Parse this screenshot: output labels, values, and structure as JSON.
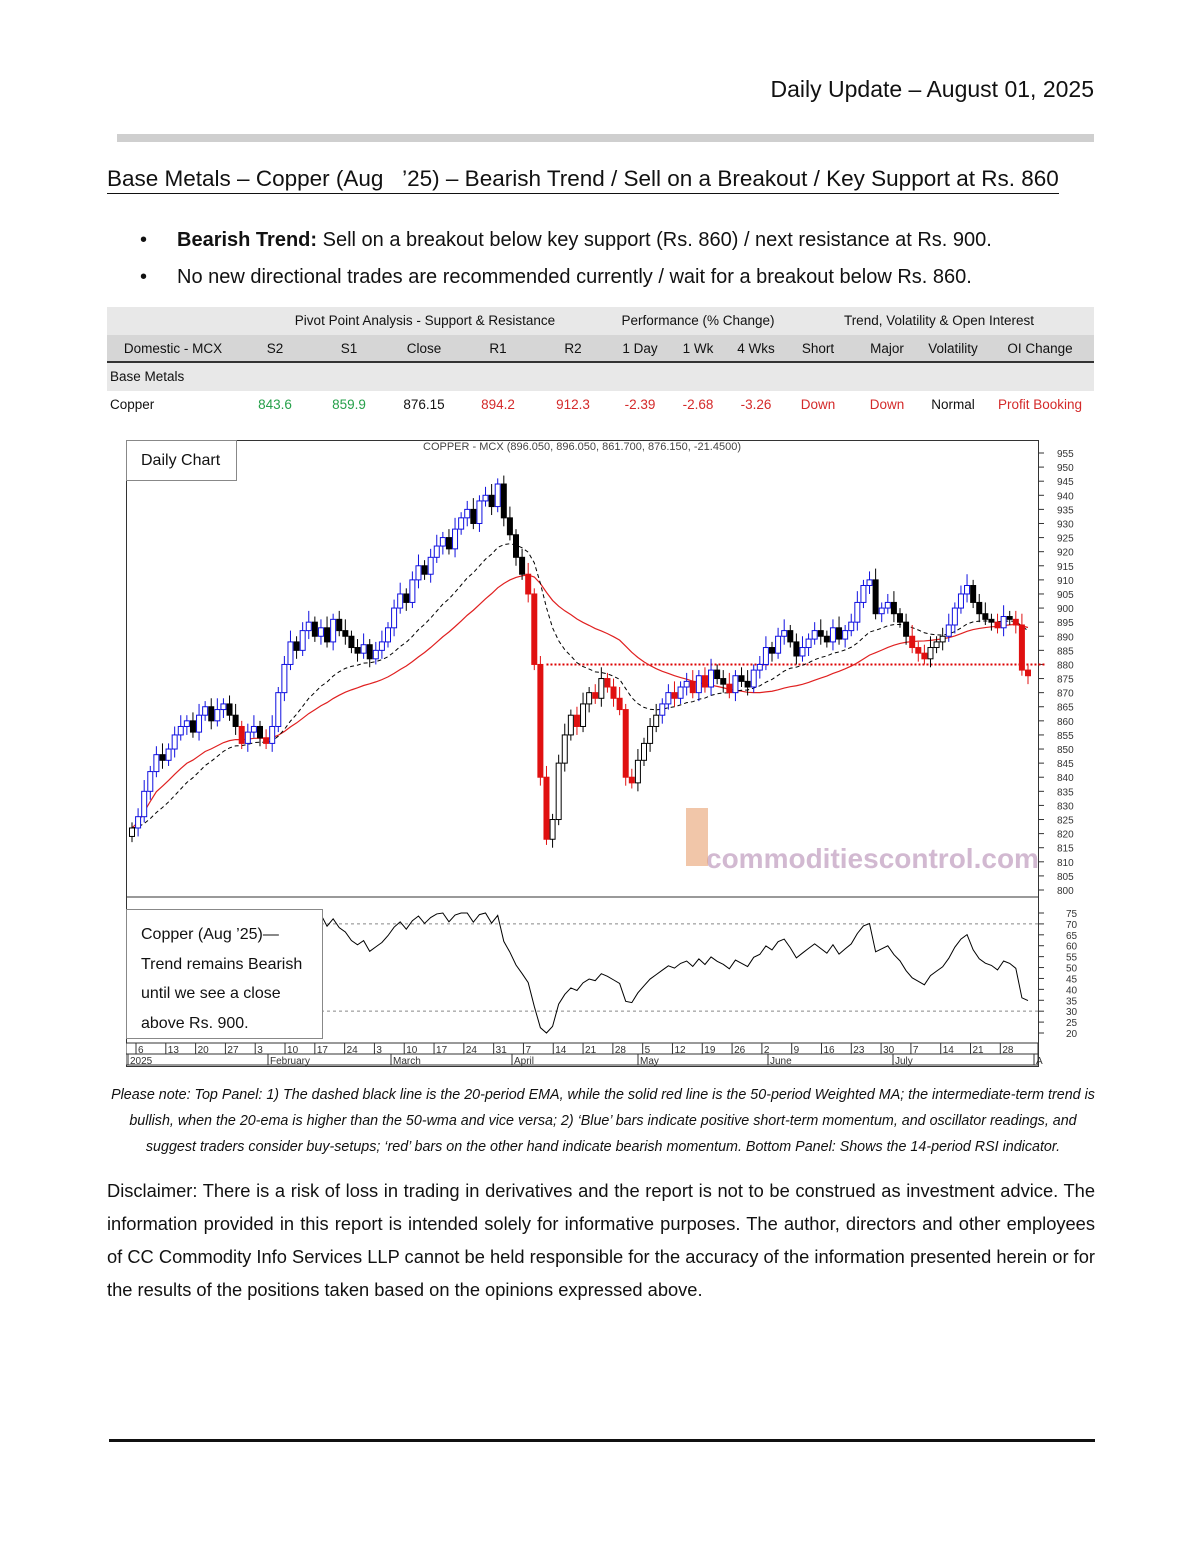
{
  "header": {
    "date": "Daily Update – August 01, 2025"
  },
  "title": "Base Metals – Copper (Aug   ’25) – Bearish Trend / Sell on a Breakout / Key Support at Rs. 860",
  "bullets": [
    {
      "bold": "Bearish Trend:",
      "text": " Sell on a breakout below key support (Rs. 860) / next resistance at Rs. 900."
    },
    {
      "bold": "",
      "text": "No new directional trades are recommended currently / wait for a breakout below Rs. 860."
    }
  ],
  "table": {
    "groups": [
      "Pivot Point Analysis - Support & Resistance",
      "Performance (% Change)",
      "Trend, Volatility & Open Interest"
    ],
    "columns": [
      "Domestic - MCX",
      "S2",
      "S1",
      "Close",
      "R1",
      "R2",
      "1 Day",
      "1 Wk",
      "4 Wks",
      "Short",
      "Major",
      "Volatility",
      "OI Change"
    ],
    "section": "Base Metals",
    "rows": [
      [
        "Copper",
        "843.6",
        "859.9",
        "876.15",
        "894.2",
        "912.3",
        "-2.39",
        "-2.68",
        "-3.26",
        "Down",
        "Down",
        "Normal",
        "Profit Booking"
      ]
    ],
    "colors": {
      "support": "#26a04a",
      "resistance": "#d42a2a"
    }
  },
  "chart_data": {
    "type": "candlestick",
    "title": "COPPER - MCX (896.050, 896.050, 861.700, 876.150, -21.4500)",
    "panel_label": "Daily Chart",
    "annotation": [
      "Copper (Aug   ’25)—",
      "Trend remains Bearish",
      "until we see a close",
      "above Rs. 900."
    ],
    "watermark": "commoditiescontrol.com",
    "ylim": [
      800,
      955
    ],
    "ytick_step": 5,
    "rsi_ylim": [
      20,
      75
    ],
    "rsi_ticks": [
      75,
      70,
      65,
      60,
      55,
      50,
      45,
      40,
      35,
      30,
      25,
      20
    ],
    "rsi_bands": [
      70,
      30
    ],
    "support_line": 880,
    "day_ticks": [
      "6",
      "13",
      "20",
      "27",
      "3",
      "10",
      "17",
      "24",
      "3",
      "10",
      "17",
      "24",
      "31",
      "7",
      "14",
      "21",
      "28",
      "5",
      "12",
      "19",
      "26",
      "2",
      "9",
      "16",
      "23",
      "30",
      "7",
      "14",
      "21",
      "28"
    ],
    "month_labels": [
      "2025",
      "February",
      "March",
      "April",
      "May",
      "June",
      "July",
      "A"
    ],
    "indicators": [
      "20-period EMA (dashed black)",
      "50-period Weighted MA (solid red)",
      "14-period RSI"
    ],
    "colors": {
      "up": "#1010e0",
      "down": "#e01010",
      "neutral": "#000000",
      "ema": "#000000",
      "wma": "#e02020"
    },
    "closes": [
      822,
      826,
      835,
      842,
      848,
      846,
      850,
      855,
      858,
      860,
      856,
      862,
      865,
      860,
      864,
      866,
      862,
      858,
      852,
      856,
      858,
      854,
      852,
      858,
      870,
      880,
      888,
      885,
      892,
      895,
      890,
      893,
      888,
      896,
      892,
      890,
      886,
      884,
      887,
      882,
      885,
      888,
      893,
      900,
      905,
      902,
      910,
      915,
      912,
      918,
      922,
      925,
      921,
      928,
      932,
      935,
      930,
      938,
      940,
      936,
      944,
      932,
      926,
      918,
      912,
      905,
      880,
      840,
      818,
      825,
      845,
      855,
      862,
      858,
      866,
      870,
      868,
      875,
      872,
      868,
      864,
      840,
      838,
      846,
      852,
      858,
      862,
      866,
      870,
      868,
      872,
      874,
      870,
      876,
      872,
      878,
      875,
      873,
      870,
      876,
      874,
      872,
      878,
      880,
      886,
      884,
      890,
      892,
      888,
      883,
      886,
      889,
      892,
      890,
      888,
      893,
      889,
      892,
      895,
      902,
      908,
      910,
      898,
      900,
      902,
      898,
      895,
      890,
      886,
      884,
      882,
      886,
      888,
      890,
      894,
      900,
      905,
      908,
      902,
      898,
      896,
      895,
      893,
      897,
      896,
      894,
      878,
      876
    ]
  },
  "note": "Please note: Top Panel: 1) The dashed black line is the 20-period EMA, while the solid red line is the 50-period Weighted MA; the intermediate-term trend is bullish, when the 20-ema is higher than the 50-wma and vice versa; 2)   ‘Blue’   bars indicate positive short-term momentum, and oscillator readings, and suggest traders consider buy-setups;   ‘red’   bars on the other hand indicate bearish momentum. Bottom Panel: Shows the 14-period RSI indicator.",
  "disclaimer": "Disclaimer: There is a risk of loss in trading in derivatives and the report is not to be construed as investment advice. The information provided in this report is intended solely for informative purposes. The author, directors and other employees of CC Commodity Info Services LLP cannot be held responsible for the accuracy of the information presented herein or for the results of the positions taken based on the opinions expressed above."
}
